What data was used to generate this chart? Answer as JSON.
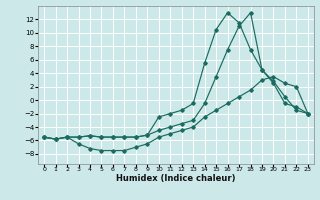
{
  "xlabel": "Humidex (Indice chaleur)",
  "bg_color": "#cce8e8",
  "grid_color": "#ffffff",
  "line_color": "#1a6b60",
  "x_ticks": [
    0,
    1,
    2,
    3,
    4,
    5,
    6,
    7,
    8,
    9,
    10,
    11,
    12,
    13,
    14,
    15,
    16,
    17,
    18,
    19,
    20,
    21,
    22,
    23
  ],
  "y_ticks": [
    -8,
    -6,
    -4,
    -2,
    0,
    2,
    4,
    6,
    8,
    10,
    12
  ],
  "xlim": [
    -0.5,
    23.5
  ],
  "ylim": [
    -9.5,
    14.0
  ],
  "line1_y": [
    -5.5,
    -5.8,
    -5.5,
    -5.5,
    -5.3,
    -5.5,
    -5.5,
    -5.5,
    -5.5,
    -5.2,
    -2.5,
    -2.0,
    -1.5,
    -0.5,
    5.5,
    10.5,
    13.0,
    11.5,
    7.5,
    4.5,
    2.5,
    -0.5,
    -1.0,
    -2.0
  ],
  "line2_y": [
    -5.5,
    -5.8,
    -5.5,
    -5.5,
    -5.3,
    -5.5,
    -5.5,
    -5.5,
    -5.5,
    -5.2,
    -4.5,
    -4.0,
    -3.5,
    -3.0,
    -0.5,
    3.5,
    7.5,
    11.0,
    13.0,
    4.5,
    2.8,
    0.5,
    -1.5,
    -2.0
  ],
  "line3_y": [
    -5.5,
    -5.8,
    -5.5,
    -6.5,
    -7.2,
    -7.5,
    -7.5,
    -7.5,
    -7.0,
    -6.5,
    -5.5,
    -5.0,
    -4.5,
    -4.0,
    -2.5,
    -1.5,
    -0.5,
    0.5,
    1.5,
    3.0,
    3.5,
    2.5,
    2.0,
    -2.0
  ]
}
